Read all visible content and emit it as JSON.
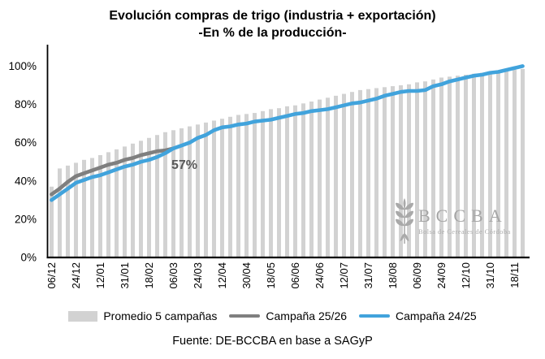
{
  "title": {
    "line1": "Evolución compras de trigo (industria + exportación)",
    "line2": "-En % de la producción-"
  },
  "chart_data": {
    "type": "bar",
    "subtype": "bars with two overlaid lines",
    "n_points": 59,
    "x_tick_labels": [
      "06/12",
      "24/12",
      "12/01",
      "31/01",
      "18/02",
      "06/03",
      "24/03",
      "12/04",
      "30/04",
      "18/05",
      "06/06",
      "24/06",
      "12/07",
      "31/07",
      "18/08",
      "06/09",
      "24/09",
      "12/10",
      "31/10",
      "18/11"
    ],
    "x_label_every": 3,
    "y_ticks": [
      "0%",
      "20%",
      "40%",
      "60%",
      "80%",
      "100%"
    ],
    "ylim": [
      0,
      100
    ],
    "grid": "off",
    "legend_position": "bottom",
    "series": [
      {
        "name": "Promedio 5 campañas",
        "type": "bar",
        "color": "#d2d2d2",
        "values": [
          37,
          46.5,
          48,
          49.5,
          51,
          52,
          53.5,
          55,
          56.5,
          58,
          59.5,
          61,
          62.5,
          64,
          65.5,
          66.5,
          67.5,
          68.5,
          69.5,
          70.5,
          71.5,
          72.5,
          73.5,
          74.5,
          75,
          75.5,
          76.5,
          77.5,
          78,
          79,
          79.5,
          80.5,
          81.5,
          82.5,
          83.5,
          84.5,
          85.5,
          86.5,
          87.5,
          88,
          88.5,
          89,
          89.5,
          90,
          90.5,
          91.5,
          92,
          93,
          94,
          94.5,
          95,
          95.5,
          96,
          96.5,
          97,
          97.5,
          97.5,
          98,
          98.5
        ]
      },
      {
        "name": "Campaña 25/26",
        "type": "line",
        "color": "#7f7f7f",
        "values": [
          33,
          36,
          39.5,
          42.5,
          44,
          45.5,
          47,
          48.5,
          49.5,
          51,
          52,
          53.5,
          54.5,
          55.5,
          56,
          57
        ]
      },
      {
        "name": "Campaña 24/25",
        "type": "line",
        "color": "#41a3dc",
        "values": [
          30,
          33,
          36,
          39,
          40.5,
          42,
          43,
          44.5,
          46,
          47.5,
          48.5,
          50,
          51,
          52.5,
          54.5,
          57,
          58.5,
          60,
          62.5,
          64,
          66.5,
          68,
          68.5,
          69.5,
          70,
          71,
          71.5,
          72,
          73,
          74,
          75,
          75.5,
          76.5,
          77,
          77.5,
          78.5,
          79.5,
          80.5,
          81,
          82,
          83,
          84.5,
          85.5,
          86.5,
          87,
          87,
          87.5,
          89.5,
          90.5,
          92,
          93,
          94,
          95,
          95.5,
          96.5,
          97,
          98,
          99,
          100
        ]
      }
    ],
    "annotation": {
      "text": "57%",
      "color": "#595959"
    }
  },
  "watermark": {
    "acronym": "BCCBA",
    "subtitle": "Bolsa de Cereales de Córdoba",
    "icon": "wheat-spike-icon",
    "color": "#a6a6a6"
  },
  "footer": "Fuente: DE-BCCBA en base a SAGyP",
  "axis_color": "#000000"
}
